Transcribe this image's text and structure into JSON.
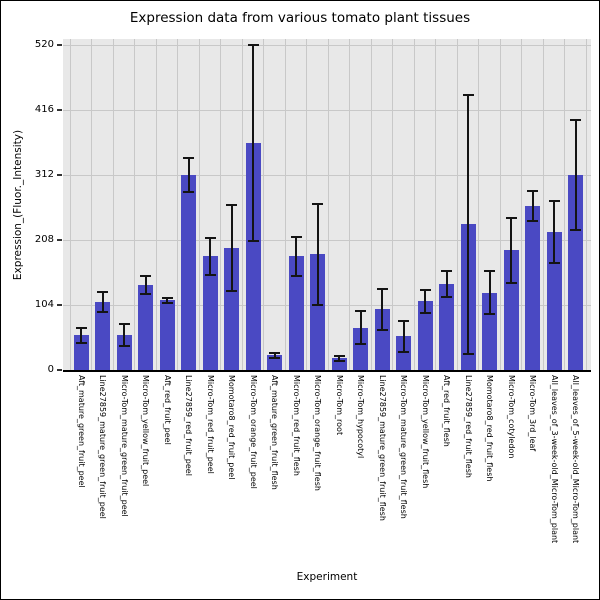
{
  "chart_data": {
    "type": "bar",
    "title": "Expression data from various tomato plant tissues",
    "xlabel": "Experiment",
    "ylabel": "Expression_(Fluor._Intensity)",
    "categories": [
      "Aft_mature_green_fruit_peel",
      "Line27859_mature_green_fruit_peel",
      "Micro-Tom_mature_green_fruit_peel",
      "Micro-Tom_yellow_fruit_peel",
      "Aft_red_fruit_peel",
      "Line27859_red_fruit_peel",
      "Micro-Tom_red_fruit_peel",
      "Momotaro8_red_fruit_peel",
      "Micro-Tom_orange_fruit_peel",
      "Aft_mature_green_fruit_flesh",
      "Micro-Tom_red_fruit_flesh",
      "Micro-Tom_orange_fruit_flesh",
      "Micro-Tom_root",
      "Micro-Tom_hypocotyl",
      "Line27859_mature_green_fruit_flesh",
      "Micro-Tom_mature_green_fruit_flesh",
      "Micro-Tom_yellow_fruit_flesh",
      "Aft_red_fruit_flesh",
      "Line27859_red_fruit_flesh",
      "Momotaro8_red_fruit_flesh",
      "Micro-Tom_cotyledon",
      "Micro-Tom_3rd_leaf",
      "All_leaves_of_3-week-old_Micro-Tom_plant",
      "All_leaves_of_5-week-old_Micro-Tom_plant"
    ],
    "values": [
      56,
      109,
      56,
      136,
      112,
      312,
      182,
      195,
      363,
      24,
      182,
      185,
      19,
      68,
      97,
      54,
      110,
      138,
      233,
      124,
      192,
      262,
      221,
      312
    ],
    "errors": [
      12,
      16,
      17,
      14,
      4,
      27,
      30,
      69,
      157,
      4,
      31,
      81,
      4,
      26,
      33,
      25,
      18,
      21,
      207,
      35,
      52,
      24,
      50,
      88
    ],
    "yticks": [
      0,
      104,
      208,
      312,
      416,
      520
    ],
    "ylim": [
      0,
      529
    ],
    "grid": true,
    "legend": null,
    "styles": {
      "bar_color": "#4a49c3",
      "plot_bg": "#e8e8e8",
      "grid_color": "#c8c8c8",
      "error_color": "#141414",
      "axis_color": "#000000",
      "text_color": "#000000"
    }
  }
}
